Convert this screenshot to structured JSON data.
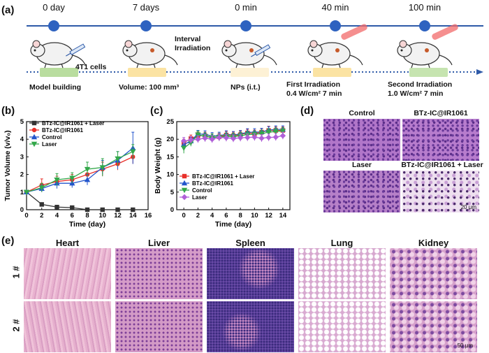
{
  "panel_labels": {
    "a": "(a)",
    "b": "(b)",
    "c": "(c)",
    "d": "(d)",
    "e": "(e)"
  },
  "timeline": {
    "line_color": "#2e5aa8",
    "times": [
      "0 day",
      "7 days",
      "0 min",
      "40 min",
      "100 min"
    ],
    "interval_label": "Interval\nIrradiation",
    "cells_label": "4T1 cells",
    "captions": [
      "Model building",
      "Volume: 100 mm³",
      "NPs (i.t.)",
      "First Irradiation\n0.4 W/cm² 7 min",
      "Second Irradiation\n1.0 W/cm² 7 min"
    ],
    "bar_colors": [
      "#b9dd9f",
      "#fbe3a3",
      "#fdf1d5",
      "#fbe3a3",
      "#c6e4b0"
    ]
  },
  "chart_b": {
    "chart_data": {
      "type": "line",
      "xlabel": "Time (day)",
      "ylabel": "Tumor Volume (v/v₀)",
      "xlim": [
        0,
        16
      ],
      "ylim": [
        0,
        5
      ],
      "xticks": [
        "0",
        "2",
        "4",
        "6",
        "8",
        "10",
        "12",
        "14",
        "16"
      ],
      "yticks": [
        "0",
        "1",
        "2",
        "3",
        "4",
        "5"
      ],
      "x": [
        0,
        2,
        4,
        6,
        8,
        10,
        12,
        14
      ],
      "series": [
        {
          "name": "BTz-IC@IR1061 + Laser",
          "color": "#333333",
          "marker": "square",
          "values": [
            1.0,
            0.3,
            0.15,
            0.12,
            0.0,
            0.0,
            0.0,
            0.0
          ],
          "errors": [
            0,
            0.1,
            0.05,
            0.04,
            0,
            0,
            0,
            0
          ]
        },
        {
          "name": "BTz-IC@IR1061",
          "color": "#e8302a",
          "marker": "circle",
          "values": [
            1.0,
            1.4,
            1.6,
            1.7,
            2.0,
            2.3,
            2.6,
            3.0
          ],
          "errors": [
            0,
            0.35,
            0.3,
            0.3,
            0.4,
            0.4,
            0.35,
            0.4
          ]
        },
        {
          "name": "Control",
          "color": "#2255cc",
          "marker": "triangle",
          "values": [
            1.0,
            1.2,
            1.5,
            1.5,
            1.7,
            2.4,
            2.8,
            3.5
          ],
          "errors": [
            0,
            0.2,
            0.3,
            0.25,
            0.3,
            0.4,
            0.5,
            0.9
          ]
        },
        {
          "name": "Laser",
          "color": "#33a84a",
          "marker": "triangle-down",
          "values": [
            1.0,
            1.25,
            1.7,
            1.8,
            2.3,
            2.4,
            2.9,
            3.3
          ],
          "errors": [
            0,
            0.25,
            0.35,
            0.3,
            0.4,
            0.5,
            0.4,
            0.4
          ]
        }
      ],
      "legend": "top-left"
    }
  },
  "chart_c": {
    "chart_data": {
      "type": "line",
      "xlabel": "Time (day)",
      "ylabel": "Body Weight (g)",
      "xlim": [
        -1,
        15
      ],
      "ylim": [
        0,
        25
      ],
      "xticks": [
        "0",
        "2",
        "4",
        "6",
        "8",
        "10",
        "12",
        "14"
      ],
      "yticks": [
        "0",
        "5",
        "10",
        "15",
        "20",
        "25"
      ],
      "x": [
        0,
        1,
        2,
        3,
        4,
        5,
        6,
        7,
        8,
        9,
        10,
        11,
        12,
        13,
        14
      ],
      "series": [
        {
          "name": "BTz-IC@IR1061 + Laser",
          "color": "#e8302a",
          "marker": "square",
          "values": [
            19.0,
            20.2,
            21.0,
            21.0,
            20.5,
            20.7,
            21.2,
            21.0,
            21.3,
            21.8,
            21.6,
            22.0,
            22.5,
            22.5,
            22.5
          ],
          "errors": [
            1.0,
            1,
            1,
            1,
            1,
            1,
            1,
            1,
            1,
            1,
            1,
            1,
            1.2,
            1,
            1
          ]
        },
        {
          "name": "BTz-IC@IR1061",
          "color": "#2255cc",
          "marker": "triangle",
          "values": [
            18.5,
            19.5,
            21.5,
            21.4,
            20.9,
            21.0,
            21.4,
            21.2,
            21.5,
            22.0,
            22.0,
            22.1,
            22.6,
            22.8,
            22.8
          ],
          "errors": [
            1.2,
            1,
            1,
            1,
            1,
            1,
            1,
            1,
            1,
            1,
            1,
            1,
            1,
            1,
            1
          ]
        },
        {
          "name": "Control",
          "color": "#33a84a",
          "marker": "triangle-down",
          "values": [
            17.5,
            19.0,
            21.3,
            20.8,
            20.5,
            20.6,
            20.8,
            20.7,
            21.0,
            21.3,
            21.4,
            21.6,
            22.0,
            22.2,
            22.3
          ],
          "errors": [
            1.5,
            1,
            1,
            1,
            1,
            1,
            1,
            1,
            1,
            1,
            1,
            1,
            1,
            1,
            1
          ]
        },
        {
          "name": "Laser",
          "color": "#b05fd8",
          "marker": "diamond",
          "values": [
            19.5,
            19.8,
            20.0,
            20.3,
            20.0,
            20.5,
            20.4,
            20.2,
            20.4,
            20.5,
            20.6,
            20.3,
            20.5,
            20.6,
            21.0
          ],
          "errors": [
            1,
            1,
            1,
            1,
            1,
            1,
            1,
            1,
            1,
            1,
            1,
            1,
            1,
            1,
            1
          ]
        }
      ],
      "legend": "bottom-left"
    }
  },
  "histology_d": {
    "titles": [
      "Control",
      "BTz-IC@IR1061",
      "Laser",
      "BTz-IC@IR1061 + Laser"
    ],
    "scale_bar": "20 μm"
  },
  "organs_e": {
    "titles": [
      "Heart",
      "Liver",
      "Spleen",
      "Lung",
      "Kidney"
    ],
    "rows": [
      "1 #",
      "2 #"
    ],
    "scale_bar": "50 μm"
  }
}
